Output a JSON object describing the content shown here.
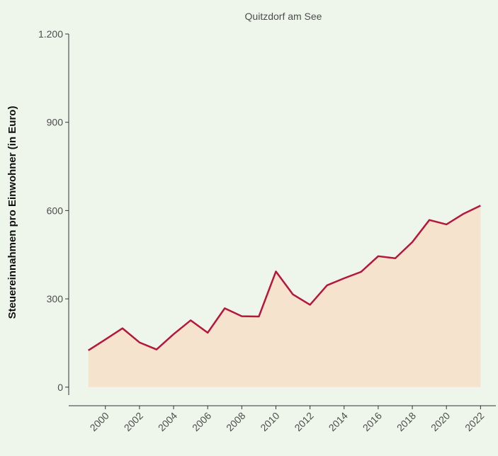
{
  "chart_data": {
    "type": "area",
    "title": "Quitzdorf am See",
    "y_label": "Steuereinnahmen pro Einwohner (in Euro)",
    "x": [
      1999,
      2000,
      2001,
      2002,
      2003,
      2004,
      2005,
      2006,
      2007,
      2008,
      2009,
      2010,
      2011,
      2012,
      2013,
      2014,
      2015,
      2016,
      2017,
      2018,
      2019,
      2020,
      2021,
      2022
    ],
    "values": [
      125,
      162,
      200,
      152,
      128,
      180,
      227,
      185,
      268,
      241,
      240,
      393,
      315,
      280,
      346,
      370,
      392,
      445,
      438,
      493,
      568,
      553,
      589,
      617
    ],
    "color": "#b5173a",
    "fill": "#f5e3cd",
    "xlim": [
      1997.85,
      2022.9
    ],
    "xticks": [
      2000,
      2002,
      2004,
      2006,
      2008,
      2010,
      2012,
      2014,
      2016,
      2018,
      2020,
      2022
    ],
    "ylim": [
      -27,
      1200
    ],
    "yticks": [
      0,
      300,
      600,
      900,
      {
        "value": 1200,
        "label": "1.200"
      }
    ],
    "grid": false
  }
}
